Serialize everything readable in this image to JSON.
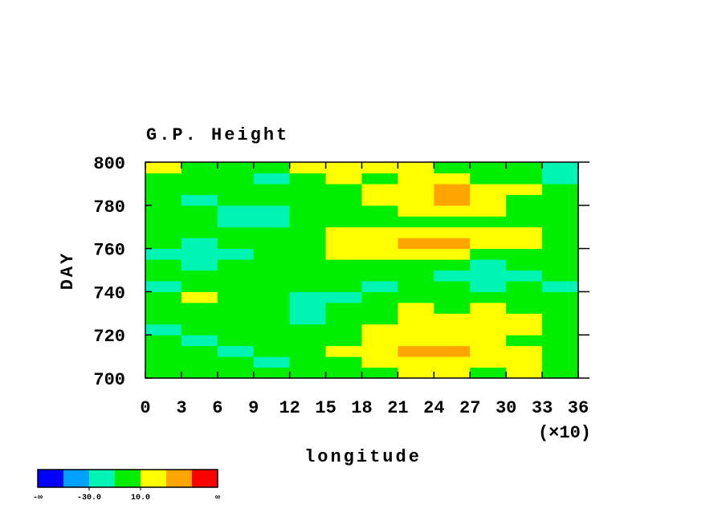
{
  "chart_data": {
    "type": "heatmap",
    "title": "G.P. Height",
    "y_label": "DAY",
    "x_label": "longitude",
    "x_multiplier_label": "(×10)",
    "xlim": [
      0,
      36
    ],
    "xticks": [
      0,
      3,
      6,
      9,
      12,
      15,
      18,
      21,
      24,
      27,
      30,
      33,
      36
    ],
    "ylim": [
      700,
      800
    ],
    "yticks": [
      700,
      720,
      740,
      760,
      780,
      800
    ],
    "x_edges": [
      0,
      3,
      6,
      9,
      12,
      15,
      18,
      21,
      24,
      27,
      30,
      33,
      36
    ],
    "y_edges": [
      700,
      705,
      710,
      715,
      720,
      725,
      730,
      735,
      740,
      745,
      750,
      755,
      760,
      765,
      770,
      775,
      780,
      785,
      790,
      795,
      800
    ],
    "values": [
      [
        0,
        -5,
        5,
        0,
        -10,
        0,
        5,
        15,
        10,
        5,
        10,
        5
      ],
      [
        5,
        0,
        -5,
        -15,
        -5,
        5,
        15,
        20,
        25,
        15,
        10,
        5
      ],
      [
        0,
        -10,
        -15,
        -5,
        0,
        10,
        20,
        30,
        35,
        20,
        10,
        0
      ],
      [
        -5,
        -15,
        -10,
        0,
        5,
        5,
        15,
        25,
        20,
        15,
        5,
        -5
      ],
      [
        -15,
        -10,
        0,
        -5,
        -10,
        0,
        10,
        20,
        15,
        20,
        10,
        0
      ],
      [
        -5,
        0,
        5,
        -10,
        -15,
        -5,
        5,
        15,
        10,
        20,
        15,
        5
      ],
      [
        5,
        5,
        0,
        -10,
        -20,
        -10,
        0,
        10,
        5,
        10,
        5,
        0
      ],
      [
        0,
        10,
        5,
        -5,
        -12,
        -15,
        -5,
        5,
        0,
        -5,
        0,
        -5
      ],
      [
        -12,
        0,
        8,
        5,
        0,
        -5,
        -12,
        0,
        -5,
        -12,
        -5,
        -12
      ],
      [
        5,
        8,
        5,
        0,
        5,
        0,
        -5,
        -5,
        -12,
        -15,
        -12,
        0
      ],
      [
        -5,
        -12,
        -5,
        5,
        8,
        5,
        5,
        0,
        -5,
        -12,
        -5,
        -5
      ],
      [
        -12,
        -15,
        -12,
        0,
        8,
        20,
        25,
        20,
        15,
        5,
        0,
        -5
      ],
      [
        -5,
        -12,
        -5,
        5,
        8,
        15,
        25,
        32,
        35,
        25,
        12,
        0
      ],
      [
        0,
        -5,
        0,
        -5,
        5,
        12,
        15,
        20,
        25,
        25,
        15,
        5
      ],
      [
        5,
        0,
        -12,
        -15,
        -5,
        0,
        8,
        5,
        8,
        5,
        0,
        -5
      ],
      [
        0,
        -5,
        -15,
        -12,
        0,
        5,
        8,
        15,
        20,
        15,
        5,
        0
      ],
      [
        -5,
        -12,
        -5,
        0,
        5,
        8,
        15,
        25,
        32,
        20,
        5,
        -5
      ],
      [
        0,
        5,
        0,
        -5,
        0,
        5,
        12,
        25,
        30,
        20,
        12,
        0
      ],
      [
        5,
        0,
        -5,
        -12,
        0,
        12,
        5,
        15,
        12,
        5,
        -5,
        -12
      ],
      [
        12,
        5,
        0,
        5,
        12,
        20,
        15,
        12,
        5,
        0,
        -5,
        -12
      ]
    ],
    "colorbar": {
      "edges": [
        -50,
        -30,
        -10,
        10,
        30,
        50
      ],
      "colors": [
        "#0000ff",
        "#00a0ff",
        "#00f5b4",
        "#00ee00",
        "#ffff00",
        "#ffa500",
        "#ff0000"
      ],
      "ticks": [
        {
          "value": -30,
          "label": "-30.0"
        },
        {
          "value": 10,
          "label": "10.0"
        }
      ],
      "low_label": "-∞",
      "high_label": "∞"
    }
  }
}
